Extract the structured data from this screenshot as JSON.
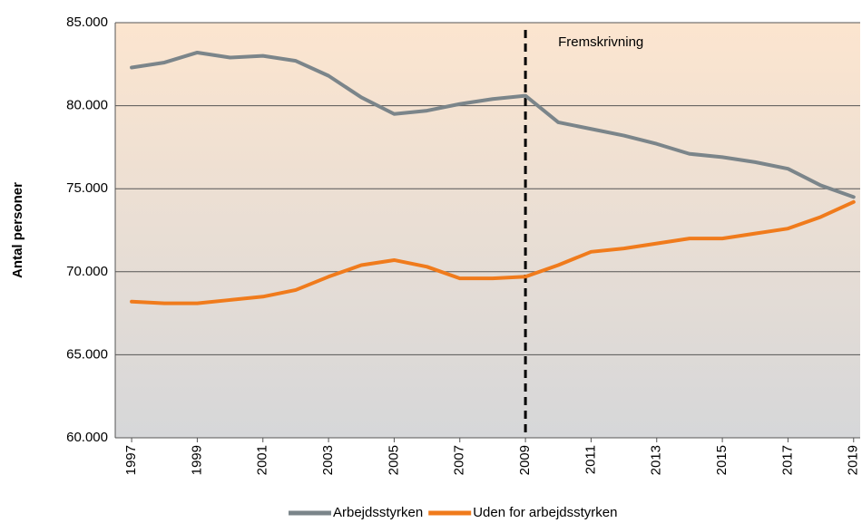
{
  "chart_data": {
    "type": "line",
    "y_label": "Antal personer",
    "annotation": "Fremskrivning",
    "vline": 2009,
    "x": [
      1997,
      1998,
      1999,
      2000,
      2001,
      2002,
      2003,
      2004,
      2005,
      2006,
      2007,
      2008,
      2009,
      2010,
      2011,
      2012,
      2013,
      2014,
      2015,
      2016,
      2017,
      2018,
      2019
    ],
    "series": [
      {
        "name": "Arbejdsstyrken",
        "color": "#7b858a",
        "values": [
          82300,
          82600,
          83200,
          82900,
          83000,
          82700,
          81800,
          80500,
          79500,
          79700,
          80100,
          80400,
          80600,
          79000,
          78600,
          78200,
          77700,
          77100,
          76900,
          76600,
          76200,
          75200,
          74500
        ]
      },
      {
        "name": "Uden for arbejdsstyrken",
        "color": "#f07b1c",
        "values": [
          68200,
          68100,
          68100,
          68300,
          68500,
          68900,
          69700,
          70400,
          70700,
          70300,
          69600,
          69600,
          69700,
          70400,
          71200,
          71400,
          71700,
          72000,
          72000,
          72300,
          72600,
          73300,
          74200
        ]
      }
    ],
    "xlim": [
      1996.5,
      2019.2
    ],
    "xticks": [
      1997,
      1999,
      2001,
      2003,
      2005,
      2007,
      2009,
      2011,
      2013,
      2015,
      2017,
      2019
    ],
    "ylim": [
      60000,
      85000
    ],
    "yticks": [
      {
        "value": 60000,
        "label": "60.000"
      },
      {
        "value": 65000,
        "label": "65.000"
      },
      {
        "value": 70000,
        "label": "70.000"
      },
      {
        "value": 75000,
        "label": "75.000"
      },
      {
        "value": 80000,
        "label": "80.000"
      },
      {
        "value": 85000,
        "label": "85.000"
      }
    ],
    "grid": true
  }
}
